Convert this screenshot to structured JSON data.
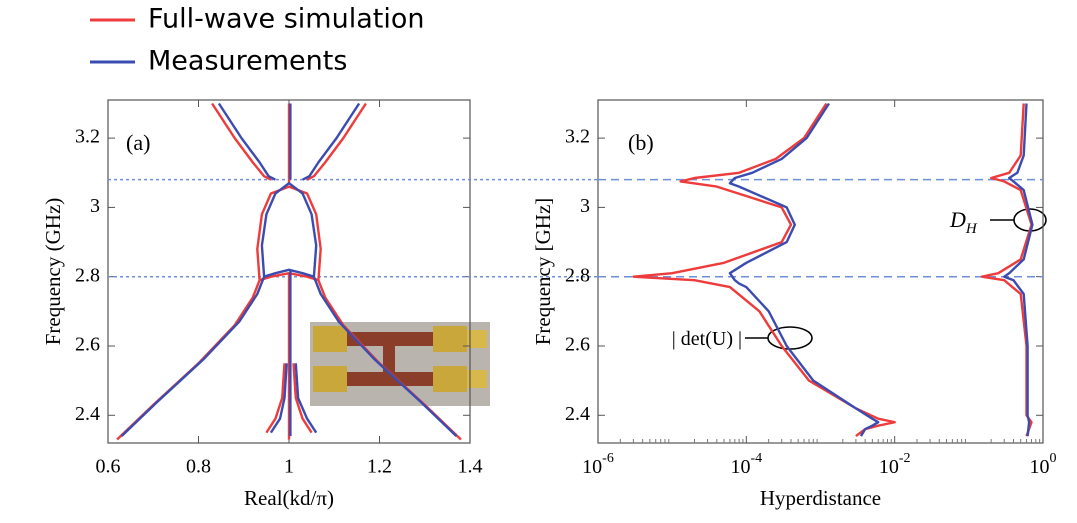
{
  "chart_data": [
    {
      "type": "line",
      "legend": "top",
      "xlabel": "Real(kd/π)",
      "ylabel": "Frequency (GHz)",
      "annotation": "(a)",
      "xlim": [
        0.6,
        1.4
      ],
      "xticks": [
        0.6,
        0.8,
        1,
        1.2,
        1.4
      ],
      "ylim": [
        2.32,
        3.31
      ],
      "yticks": [
        2.4,
        2.6,
        2.8,
        3,
        3.2
      ],
      "hlines": [
        3.08,
        2.8
      ],
      "hline_color": "#6f8fd8",
      "series": [
        {
          "name": "Full-wave simulation",
          "color": "#ee3b3b",
          "x": [
            0.62,
            0.7,
            0.8,
            0.88,
            0.92,
            0.935,
            null,
            1.38,
            1.3,
            1.2,
            1.12,
            1.08,
            1.065,
            null,
            0.935,
            0.93,
            0.94,
            0.96,
            1.0,
            1.04,
            1.06,
            1.07,
            1.065,
            1.04,
            1.0,
            0.96,
            0.935,
            null,
            0.83,
            0.88,
            0.92,
            0.945,
            0.96,
            null,
            1.17,
            1.12,
            1.08,
            1.055,
            1.04,
            null,
            1.0,
            1.0,
            1.0,
            null,
            1.0,
            1.0,
            1.0,
            null,
            0.99,
            0.985,
            0.97,
            0.95,
            null,
            1.01,
            1.015,
            1.03,
            1.05
          ],
          "values": [
            2.33,
            2.43,
            2.55,
            2.66,
            2.74,
            2.79,
            null,
            2.33,
            2.43,
            2.55,
            2.66,
            2.74,
            2.79,
            null,
            2.79,
            2.88,
            2.98,
            3.04,
            3.06,
            3.04,
            2.98,
            2.88,
            2.79,
            2.8,
            2.81,
            2.8,
            2.79,
            null,
            3.3,
            3.2,
            3.13,
            3.09,
            3.08,
            null,
            3.3,
            3.2,
            3.13,
            3.09,
            3.08,
            null,
            3.3,
            3.12,
            3.07,
            null,
            2.81,
            2.6,
            2.33,
            null,
            2.55,
            2.45,
            2.39,
            2.35,
            null,
            2.55,
            2.45,
            2.39,
            2.35
          ]
        },
        {
          "name": "Measurements",
          "color": "#3b4cb0",
          "x": [
            0.63,
            0.71,
            0.81,
            0.89,
            0.93,
            0.945,
            null,
            1.37,
            1.29,
            1.19,
            1.11,
            1.07,
            1.055,
            null,
            0.945,
            0.94,
            0.95,
            0.97,
            1.0,
            1.03,
            1.05,
            1.06,
            1.055,
            1.03,
            1.0,
            0.97,
            0.945,
            null,
            0.845,
            0.895,
            0.935,
            0.955,
            0.97,
            null,
            1.155,
            1.105,
            1.065,
            1.045,
            1.03,
            null,
            1.003,
            1.003,
            1.003,
            null,
            1.003,
            1.003,
            1.003,
            null,
            0.995,
            0.99,
            0.98,
            0.96,
            null,
            1.015,
            1.02,
            1.04,
            1.06
          ],
          "values": [
            2.34,
            2.44,
            2.56,
            2.67,
            2.75,
            2.8,
            null,
            2.34,
            2.44,
            2.56,
            2.67,
            2.75,
            2.8,
            null,
            2.8,
            2.89,
            2.98,
            3.04,
            3.07,
            3.04,
            2.98,
            2.89,
            2.8,
            2.81,
            2.82,
            2.81,
            2.8,
            null,
            3.3,
            3.2,
            3.13,
            3.09,
            3.08,
            null,
            3.3,
            3.2,
            3.13,
            3.09,
            3.08,
            null,
            3.3,
            3.12,
            3.08,
            null,
            2.82,
            2.6,
            2.34,
            null,
            2.55,
            2.45,
            2.39,
            2.35,
            null,
            2.55,
            2.45,
            2.39,
            2.35
          ]
        }
      ]
    },
    {
      "type": "line",
      "xscale": "log",
      "xlabel": "Hyperdistance",
      "ylabel": "Frequency [GHz]",
      "annotation": "(b)",
      "det_label": "| det(U) |",
      "dh_label": "D",
      "dh_subscript": "H",
      "xlim": [
        1e-06,
        1
      ],
      "xticks": [
        {
          "value": 1e-06,
          "label": "10",
          "exponent": "-6"
        },
        {
          "value": 0.0001,
          "label": "10",
          "exponent": "-4"
        },
        {
          "value": 0.01,
          "label": "10",
          "exponent": "-2"
        },
        {
          "value": 1,
          "label": "10",
          "exponent": "0"
        }
      ],
      "ylim": [
        2.32,
        3.31
      ],
      "yticks": [
        2.4,
        2.6,
        2.8,
        3,
        3.2
      ],
      "hlines": [
        3.08,
        2.8
      ],
      "hline_color": "#6f8fd8",
      "series": [
        {
          "color": "#ee3b3b",
          "x": [
            0.0012,
            0.0006,
            0.00025,
            8e-05,
            2e-05,
            1.3e-05,
            4e-05,
            0.0003,
            0.0004,
            0.0003,
            5e-05,
            1e-05,
            3e-06,
            2e-05,
            6e-05,
            0.00015,
            0.0003,
            0.0007,
            0.003,
            0.006,
            0.01,
            0.006,
            0.004,
            0.003,
            null,
            0.55,
            0.5,
            0.35,
            0.2,
            0.3,
            0.5,
            0.7,
            0.5,
            0.25,
            0.15,
            0.3,
            0.5,
            0.6,
            0.6,
            0.7,
            0.6
          ],
          "values": [
            3.3,
            3.2,
            3.14,
            3.1,
            3.085,
            3.075,
            3.06,
            3.0,
            2.95,
            2.9,
            2.84,
            2.81,
            2.8,
            2.79,
            2.77,
            2.7,
            2.6,
            2.5,
            2.42,
            2.39,
            2.38,
            2.37,
            2.36,
            2.34,
            null,
            3.3,
            3.15,
            3.1,
            3.085,
            3.075,
            3.05,
            2.95,
            2.85,
            2.81,
            2.8,
            2.79,
            2.75,
            2.6,
            2.4,
            2.38,
            2.34
          ]
        },
        {
          "color": "#3b4cb0",
          "x": [
            0.0013,
            0.00065,
            0.0003,
            0.00012,
            7e-05,
            6e-05,
            8e-05,
            0.00035,
            0.00045,
            0.00035,
            0.0001,
            6e-05,
            7e-05,
            8e-05,
            0.0001,
            0.0002,
            0.00035,
            0.0008,
            0.003,
            0.005,
            0.006,
            0.005,
            0.004,
            0.0035,
            null,
            0.6,
            0.55,
            0.45,
            0.35,
            0.4,
            0.55,
            0.72,
            0.55,
            0.35,
            0.3,
            0.4,
            0.55,
            0.62,
            0.62,
            0.65,
            0.62
          ],
          "values": [
            3.3,
            3.2,
            3.14,
            3.1,
            3.085,
            3.07,
            3.06,
            3.0,
            2.95,
            2.9,
            2.84,
            2.81,
            2.79,
            2.78,
            2.77,
            2.7,
            2.6,
            2.5,
            2.42,
            2.39,
            2.38,
            2.37,
            2.36,
            2.34,
            null,
            3.3,
            3.15,
            3.1,
            3.085,
            3.075,
            3.05,
            2.95,
            2.85,
            2.81,
            2.8,
            2.79,
            2.75,
            2.6,
            2.4,
            2.38,
            2.34
          ]
        }
      ]
    }
  ]
}
